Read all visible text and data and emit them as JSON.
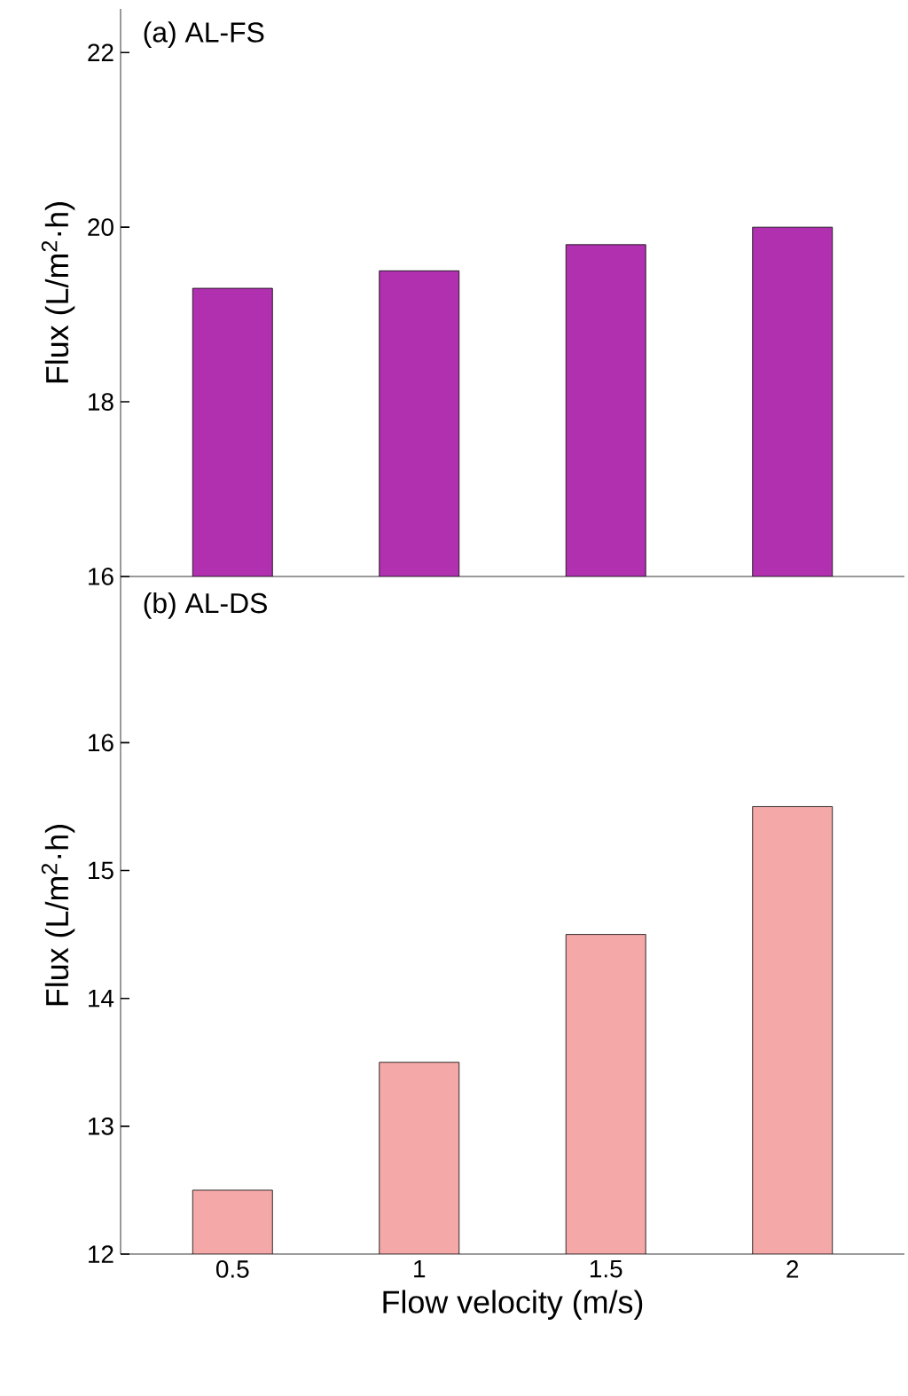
{
  "chart_data": [
    {
      "type": "bar",
      "title": "(a) AL-FS",
      "ylabel": "Flux (L/m$^{2}$·h)",
      "categories": [
        "0.5",
        "1",
        "1.5",
        "2"
      ],
      "values": [
        19.3,
        19.5,
        19.8,
        20.0
      ],
      "color": "#b030b0",
      "ylim": [
        16,
        22.5
      ],
      "yticks": [
        16,
        18,
        20,
        22
      ],
      "tick_labels": "y"
    },
    {
      "type": "bar",
      "title": "(b) AL-DS",
      "ylabel": "Flux (L/m$^{2}$·h)",
      "xlabel": "Flow velocity (m/s)",
      "categories": [
        "0.5",
        "1",
        "1.5",
        "2"
      ],
      "values": [
        12.5,
        13.5,
        14.5,
        15.5
      ],
      "color": "#f4a8a8",
      "ylim": [
        12,
        17.3
      ],
      "yticks": [
        12,
        13,
        14,
        15,
        16
      ]
    }
  ]
}
